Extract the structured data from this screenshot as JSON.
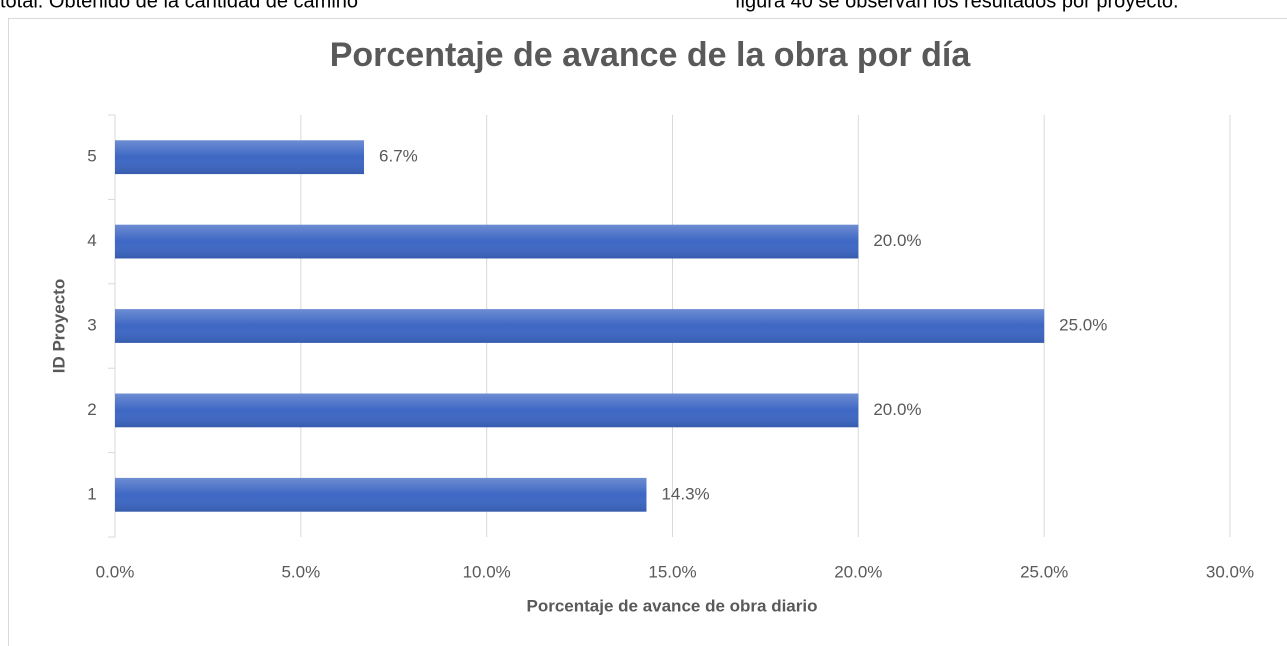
{
  "document_text": [
    "total.  Obtenido  de  la  cantidad  de  camino",
    "figura 40 se observan los resultados por proyecto."
  ],
  "chart_data": {
    "type": "bar",
    "orientation": "horizontal",
    "title": "Porcentaje de avance de la obra por día",
    "xlabel": "Porcentaje de avance de obra diario",
    "ylabel": "ID Proyecto",
    "categories": [
      "1",
      "2",
      "3",
      "4",
      "5"
    ],
    "values": [
      14.3,
      20,
      25,
      20,
      6.7
    ],
    "value_labels": [
      "14.3%",
      "20.0%",
      "25.0%",
      "20.0%",
      "6.7%"
    ],
    "color": "#3d67c4",
    "xlim": [
      0,
      30
    ],
    "xticks": [
      {
        "value": 0,
        "label": "0.0%"
      },
      {
        "value": 5,
        "label": "5.0%"
      },
      {
        "value": 10,
        "label": "10.0%"
      },
      {
        "value": 15,
        "label": "15.0%"
      },
      {
        "value": 20,
        "label": "20.0%"
      },
      {
        "value": 25,
        "label": "25.0%"
      },
      {
        "value": 30,
        "label": "30.0%"
      }
    ],
    "grid": true
  }
}
